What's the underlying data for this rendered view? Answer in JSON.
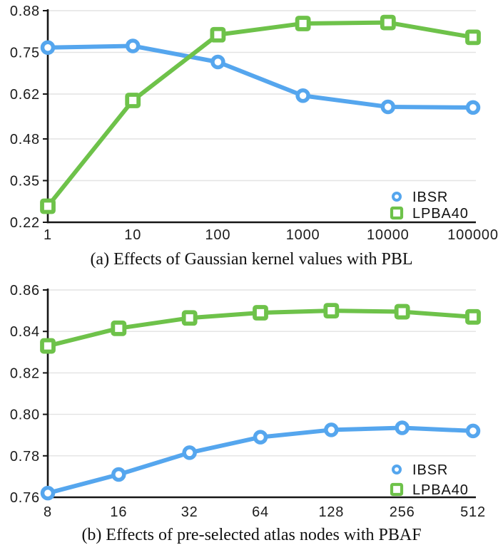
{
  "colors": {
    "ibsr": "#55a6ee",
    "lpba40": "#6ec24a",
    "axis": "#161616",
    "grid": "#e3e3e3",
    "tick_text": "#1c1c1c",
    "caption_text": "#111111",
    "background": "#ffffff"
  },
  "legend": {
    "items": [
      "IBSR",
      "LPBA40"
    ],
    "position": "bottom-right-inside"
  },
  "chart_data": [
    {
      "type": "line",
      "title": "(a) Effects of Gaussian kernel values with PBL",
      "xlabel": "",
      "ylabel": "",
      "x_scale": "log",
      "categories": [
        1,
        10,
        100,
        1000,
        10000,
        100000
      ],
      "x_tick_labels": [
        "1",
        "10",
        "100",
        "1000",
        "10000",
        "100000"
      ],
      "y_ticks": [
        0.22,
        0.35,
        0.48,
        0.62,
        0.75,
        0.88
      ],
      "y_tick_labels": [
        "0.22",
        "0.35",
        "0.48",
        "0.62",
        "0.75",
        "0.88"
      ],
      "ylim": [
        0.22,
        0.88
      ],
      "grid": "horizontal",
      "legend_position": "bottom-right-inside",
      "series": [
        {
          "name": "IBSR",
          "marker": "circle",
          "color": "#55a6ee",
          "values": [
            0.765,
            0.77,
            0.72,
            0.615,
            0.58,
            0.578
          ]
        },
        {
          "name": "LPBA40",
          "marker": "square",
          "color": "#6ec24a",
          "values": [
            0.27,
            0.6,
            0.805,
            0.84,
            0.843,
            0.797
          ]
        }
      ]
    },
    {
      "type": "line",
      "title": "(b) Effects of pre-selected atlas nodes with PBAF",
      "xlabel": "",
      "ylabel": "",
      "x_scale": "log2",
      "categories": [
        8,
        16,
        32,
        64,
        128,
        256,
        512
      ],
      "x_tick_labels": [
        "8",
        "16",
        "32",
        "64",
        "128",
        "256",
        "512"
      ],
      "y_ticks": [
        0.76,
        0.78,
        0.8,
        0.82,
        0.84,
        0.86
      ],
      "y_tick_labels": [
        "0.76",
        "0.78",
        "0.80",
        "0.82",
        "0.84",
        "0.86"
      ],
      "ylim": [
        0.76,
        0.86
      ],
      "grid": "horizontal",
      "legend_position": "bottom-right-inside",
      "series": [
        {
          "name": "IBSR",
          "marker": "circle",
          "color": "#55a6ee",
          "values": [
            0.762,
            0.771,
            0.7815,
            0.789,
            0.7925,
            0.7935,
            0.792
          ]
        },
        {
          "name": "LPBA40",
          "marker": "square",
          "color": "#6ec24a",
          "values": [
            0.833,
            0.8415,
            0.8465,
            0.849,
            0.85,
            0.8495,
            0.847
          ]
        }
      ]
    }
  ]
}
